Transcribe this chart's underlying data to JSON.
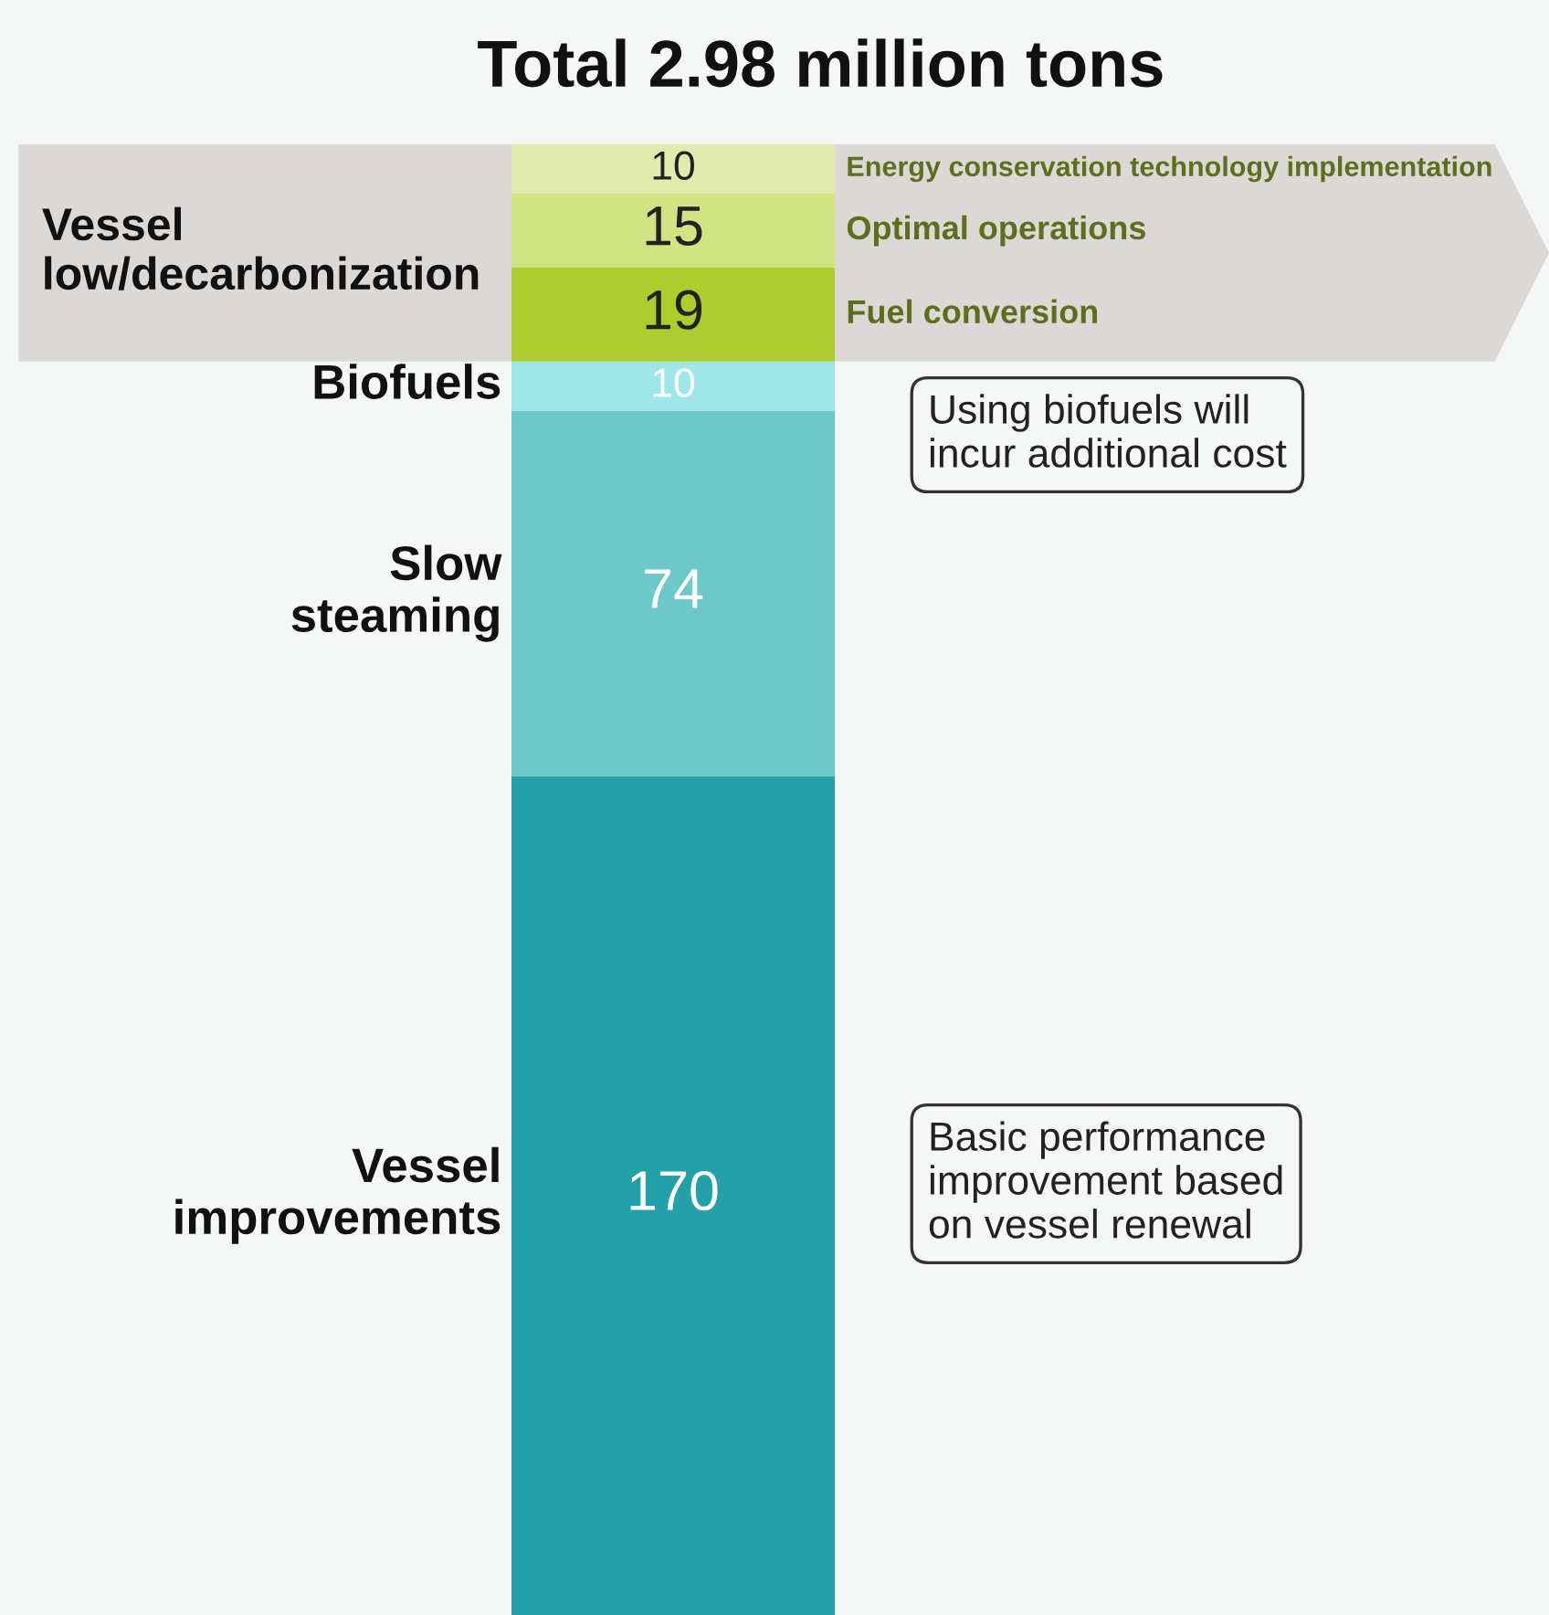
{
  "chart_data": {
    "type": "bar",
    "stacked": true,
    "title": "Total 2.98 million tons",
    "categories": [
      null
    ],
    "data_labels": true,
    "series": [
      {
        "name": "Vessel improvements",
        "color": "#23a0a8",
        "values": [
          170
        ]
      },
      {
        "name": "Slow steaming",
        "color": "#6ec8c8",
        "values": [
          74
        ]
      },
      {
        "name": "Biofuels",
        "color": "#9ee6ea",
        "values": [
          10
        ]
      },
      {
        "name": "Fuel conversion",
        "color": "#afcc2e",
        "values": [
          19
        ]
      },
      {
        "name": "Optimal operations",
        "color": "#d2e384",
        "values": [
          15
        ]
      },
      {
        "name": "Energy conservation technology implementation",
        "color": "#e1ebae",
        "values": [
          10
        ]
      }
    ],
    "bands": [
      {
        "axis": "y",
        "from": 254,
        "to": 298,
        "label": "Vessel\nlow/decarbonization",
        "color": "#dcd8d6"
      }
    ],
    "annotations": [
      "Using biofuels will\nincur additional cost",
      "Basic performance\nimprovement based\non vessel renewal"
    ]
  }
}
